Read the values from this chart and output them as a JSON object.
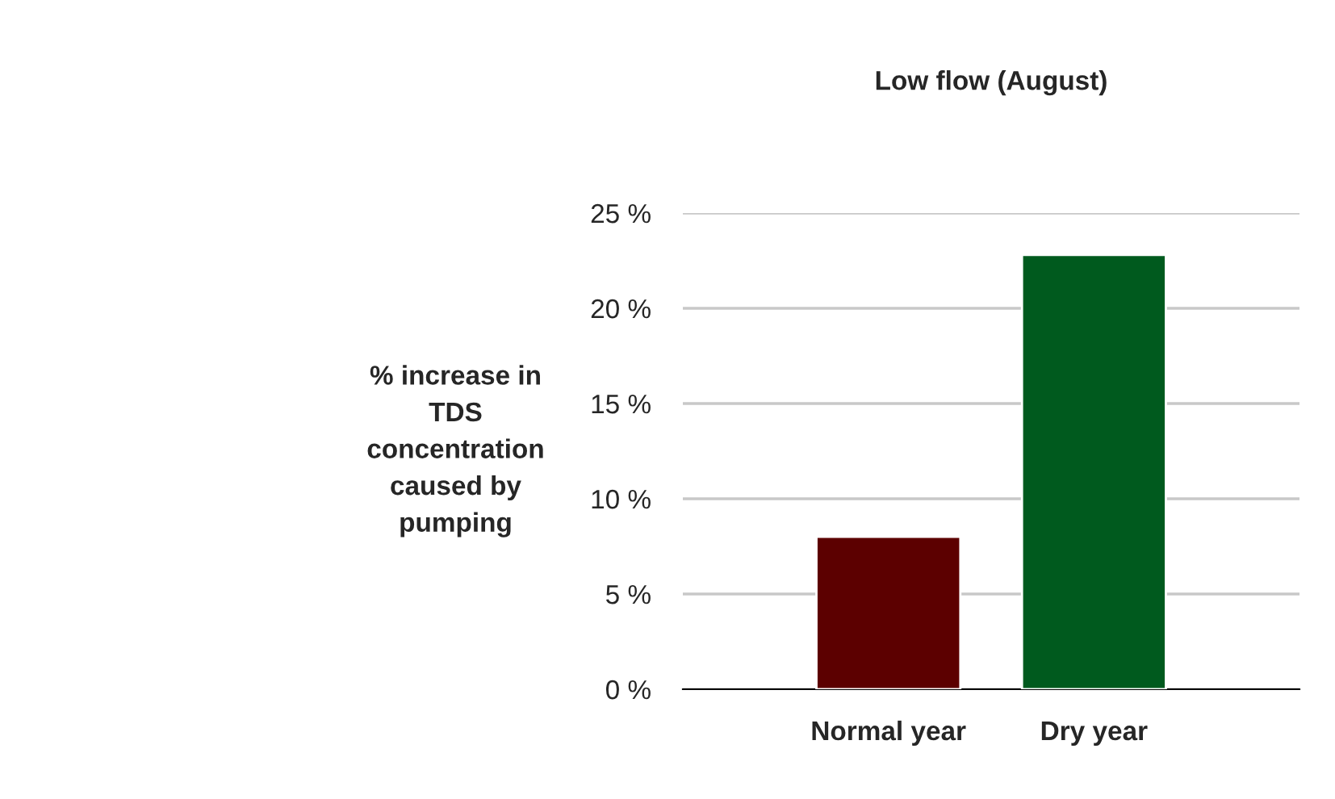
{
  "chart_data": {
    "type": "bar",
    "title": "Low flow (August)",
    "ylabel": "% increase in\nTDS\nconcentration\ncaused by\npumping",
    "categories": [
      "Normal year",
      "Dry year"
    ],
    "values": [
      8.0,
      22.8
    ],
    "colors": [
      "#5c0000",
      "#005a1e"
    ],
    "ylim": [
      0,
      25
    ],
    "yticks": [
      {
        "value": 0,
        "label": "0 %"
      },
      {
        "value": 5,
        "label": "5 %"
      },
      {
        "value": 10,
        "label": "10 %"
      },
      {
        "value": 15,
        "label": "15 %"
      },
      {
        "value": 20,
        "label": "20 %"
      },
      {
        "value": 25,
        "label": "25 %"
      }
    ],
    "grid": "y",
    "legend": false
  }
}
